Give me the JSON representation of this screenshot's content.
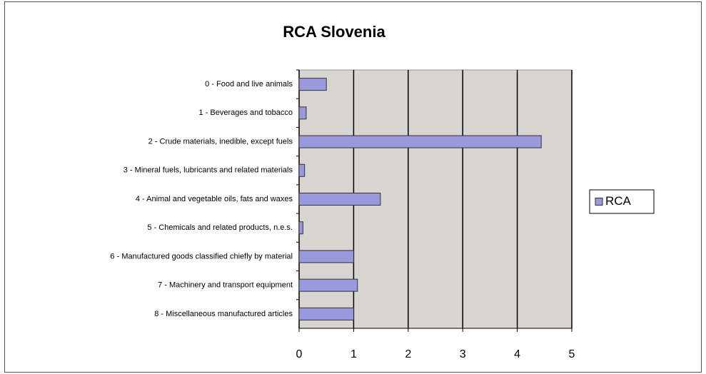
{
  "chart_data": {
    "type": "bar",
    "orientation": "horizontal",
    "title": "RCA Slovenia",
    "categories": [
      "0 - Food and live animals",
      "1 - Beverages and tobacco",
      "2 - Crude materials, inedible, except fuels",
      "3 - Mineral fuels, lubricants and related materials",
      "4 - Animal and vegetable oils, fats and waxes",
      "5 - Chemicals and related products, n.e.s.",
      "6 - Manufactured goods classified chiefly by material",
      "7 - Machinery and transport equipment",
      "8 - Miscellaneous manufactured articles"
    ],
    "series": [
      {
        "name": "RCA",
        "color": "#9999dd",
        "values": [
          0.5,
          0.13,
          4.44,
          0.1,
          1.49,
          0.07,
          1.0,
          1.07,
          1.0
        ]
      }
    ],
    "xlim": [
      0,
      5
    ],
    "xticks": [
      0,
      1,
      2,
      3,
      4,
      5
    ],
    "grid": true,
    "legend": "right"
  }
}
